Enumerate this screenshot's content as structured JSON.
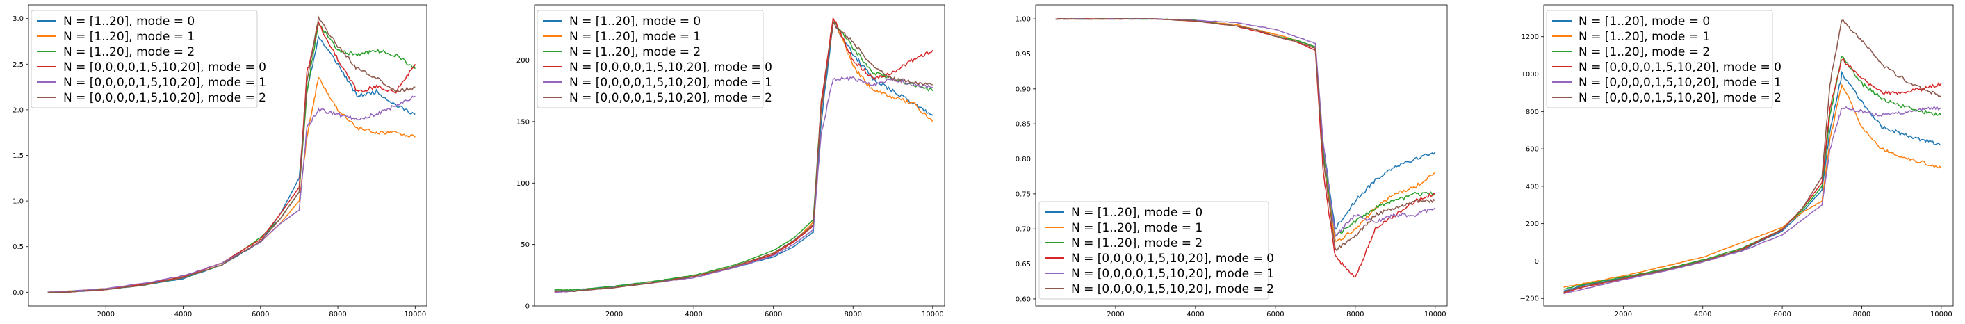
{
  "chart_data": [
    {
      "type": "line",
      "xlim": [
        0,
        10300
      ],
      "ylim": [
        -0.15,
        3.15
      ],
      "xticks": [
        2000,
        4000,
        6000,
        8000,
        10000
      ],
      "yticks": [
        0.0,
        0.5,
        1.0,
        1.5,
        2.0,
        2.5,
        3.0
      ],
      "ytick_labels": [
        "0.0",
        "0.5",
        "1.0",
        "1.5",
        "2.0",
        "2.5",
        "3.0"
      ],
      "legend_loc": "upper-left",
      "grid": false,
      "x": [
        500,
        1000,
        2000,
        3000,
        4000,
        5000,
        6000,
        6500,
        7000,
        7200,
        7500,
        8000,
        8500,
        9000,
        9500,
        10000
      ],
      "series": [
        {
          "name": "N = [1..20], mode = 0",
          "color": "#1f77b4",
          "values": [
            0.0,
            0.0,
            0.03,
            0.08,
            0.15,
            0.3,
            0.55,
            0.85,
            1.25,
            2.2,
            2.8,
            2.5,
            2.15,
            2.2,
            2.05,
            1.95
          ]
        },
        {
          "name": "N = [1..20], mode = 1",
          "color": "#ff7f0e",
          "values": [
            0.0,
            0.01,
            0.04,
            0.09,
            0.17,
            0.32,
            0.55,
            0.75,
            1.0,
            1.7,
            2.35,
            2.0,
            1.8,
            1.75,
            1.75,
            1.7
          ]
        },
        {
          "name": "N = [1..20], mode = 2",
          "color": "#2ca02c",
          "values": [
            0.0,
            0.01,
            0.03,
            0.08,
            0.16,
            0.3,
            0.6,
            0.8,
            1.1,
            2.2,
            2.95,
            2.65,
            2.6,
            2.65,
            2.6,
            2.45
          ]
        },
        {
          "name": "N = [0,0,0,0,1,5,10,20], mode = 0",
          "color": "#d62728",
          "values": [
            0.0,
            0.0,
            0.03,
            0.09,
            0.17,
            0.32,
            0.58,
            0.85,
            1.15,
            2.4,
            2.95,
            2.55,
            2.2,
            2.25,
            2.2,
            2.5
          ]
        },
        {
          "name": "N = [0,0,0,0,1,5,10,20], mode = 1",
          "color": "#9467bd",
          "values": [
            0.0,
            0.01,
            0.04,
            0.1,
            0.18,
            0.32,
            0.55,
            0.75,
            0.9,
            1.8,
            2.0,
            1.95,
            1.9,
            1.95,
            2.05,
            2.15
          ]
        },
        {
          "name": "N = [0,0,0,0,1,5,10,20], mode = 2",
          "color": "#8c564b",
          "values": [
            0.0,
            0.0,
            0.03,
            0.08,
            0.16,
            0.3,
            0.56,
            0.8,
            1.1,
            2.3,
            3.0,
            2.7,
            2.45,
            2.35,
            2.2,
            2.25
          ]
        }
      ]
    },
    {
      "type": "line",
      "xlim": [
        0,
        10300
      ],
      "ylim": [
        0,
        245
      ],
      "xticks": [
        2000,
        4000,
        6000,
        8000,
        10000
      ],
      "yticks": [
        0,
        50,
        100,
        150,
        200
      ],
      "ytick_labels": [
        "0",
        "50",
        "100",
        "150",
        "200"
      ],
      "legend_loc": "upper-left",
      "grid": false,
      "x": [
        500,
        1000,
        2000,
        3000,
        4000,
        5000,
        6000,
        6500,
        7000,
        7200,
        7500,
        8000,
        8500,
        9000,
        9500,
        10000
      ],
      "series": [
        {
          "name": "N = [1..20], mode = 0",
          "color": "#1f77b4",
          "values": [
            12,
            13,
            16,
            20,
            24,
            31,
            40,
            48,
            60,
            150,
            230,
            205,
            185,
            175,
            165,
            155
          ]
        },
        {
          "name": "N = [1..20], mode = 1",
          "color": "#ff7f0e",
          "values": [
            12,
            12,
            15,
            19,
            24,
            32,
            43,
            52,
            68,
            160,
            235,
            195,
            175,
            170,
            165,
            150
          ]
        },
        {
          "name": "N = [1..20], mode = 2",
          "color": "#2ca02c",
          "values": [
            13,
            13,
            16,
            20,
            25,
            33,
            45,
            55,
            70,
            165,
            232,
            210,
            190,
            185,
            180,
            175
          ]
        },
        {
          "name": "N = [0,0,0,0,1,5,10,20], mode = 0",
          "color": "#d62728",
          "values": [
            12,
            12,
            15,
            19,
            24,
            31,
            42,
            52,
            65,
            165,
            235,
            200,
            185,
            190,
            200,
            208
          ]
        },
        {
          "name": "N = [0,0,0,0,1,5,10,20], mode = 1",
          "color": "#9467bd",
          "values": [
            11,
            12,
            15,
            19,
            23,
            31,
            41,
            50,
            62,
            140,
            185,
            185,
            180,
            185,
            180,
            178
          ]
        },
        {
          "name": "N = [0,0,0,0,1,5,10,20], mode = 2",
          "color": "#8c564b",
          "values": [
            12,
            12,
            15,
            19,
            24,
            32,
            43,
            53,
            66,
            160,
            230,
            215,
            195,
            185,
            182,
            180
          ]
        }
      ]
    },
    {
      "type": "line",
      "xlim": [
        0,
        10300
      ],
      "ylim": [
        0.59,
        1.02
      ],
      "xticks": [
        2000,
        4000,
        6000,
        8000,
        10000
      ],
      "yticks": [
        0.6,
        0.65,
        0.7,
        0.75,
        0.8,
        0.85,
        0.9,
        0.95,
        1.0
      ],
      "ytick_labels": [
        "0.60",
        "0.65",
        "0.70",
        "0.75",
        "0.80",
        "0.85",
        "0.90",
        "0.95",
        "1.00"
      ],
      "legend_loc": "lower-left",
      "grid": false,
      "x": [
        500,
        1000,
        2000,
        3000,
        4000,
        5000,
        5500,
        6000,
        6500,
        7000,
        7200,
        7500,
        8000,
        8500,
        9000,
        9500,
        10000
      ],
      "series": [
        {
          "name": "N = [1..20], mode = 0",
          "color": "#1f77b4",
          "values": [
            1.0,
            1.0,
            1.0,
            1.0,
            0.998,
            0.99,
            0.985,
            0.975,
            0.97,
            0.96,
            0.82,
            0.7,
            0.74,
            0.77,
            0.79,
            0.8,
            0.81
          ]
        },
        {
          "name": "N = [1..20], mode = 1",
          "color": "#ff7f0e",
          "values": [
            1.0,
            1.0,
            1.0,
            1.0,
            0.997,
            0.992,
            0.985,
            0.978,
            0.97,
            0.96,
            0.8,
            0.68,
            0.7,
            0.73,
            0.75,
            0.76,
            0.78
          ]
        },
        {
          "name": "N = [1..20], mode = 2",
          "color": "#2ca02c",
          "values": [
            1.0,
            1.0,
            1.0,
            1.0,
            0.998,
            0.99,
            0.985,
            0.975,
            0.97,
            0.96,
            0.81,
            0.69,
            0.71,
            0.73,
            0.74,
            0.75,
            0.75
          ]
        },
        {
          "name": "N = [0,0,0,0,1,5,10,20], mode = 0",
          "color": "#d62728",
          "values": [
            1.0,
            1.0,
            1.0,
            1.0,
            0.997,
            0.99,
            0.983,
            0.975,
            0.968,
            0.955,
            0.78,
            0.66,
            0.63,
            0.7,
            0.72,
            0.74,
            0.75
          ]
        },
        {
          "name": "N = [0,0,0,0,1,5,10,20], mode = 1",
          "color": "#9467bd",
          "values": [
            1.0,
            1.0,
            1.0,
            1.0,
            0.998,
            0.995,
            0.99,
            0.985,
            0.975,
            0.965,
            0.82,
            0.69,
            0.72,
            0.71,
            0.72,
            0.72,
            0.73
          ]
        },
        {
          "name": "N = [0,0,0,0,1,5,10,20], mode = 2",
          "color": "#8c564b",
          "values": [
            1.0,
            1.0,
            1.0,
            1.0,
            0.997,
            0.99,
            0.985,
            0.975,
            0.968,
            0.958,
            0.8,
            0.67,
            0.69,
            0.72,
            0.73,
            0.74,
            0.74
          ]
        }
      ]
    },
    {
      "type": "line",
      "xlim": [
        0,
        10300
      ],
      "ylim": [
        -240,
        1370
      ],
      "xticks": [
        2000,
        4000,
        6000,
        8000,
        10000
      ],
      "yticks": [
        -200,
        0,
        200,
        400,
        600,
        800,
        1000,
        1200
      ],
      "ytick_labels": [
        "−200",
        "0",
        "200",
        "400",
        "600",
        "800",
        "1000",
        "1200"
      ],
      "legend_loc": "upper-left",
      "grid": false,
      "x": [
        500,
        1000,
        2000,
        3000,
        4000,
        5000,
        6000,
        6500,
        7000,
        7200,
        7500,
        8000,
        8500,
        9000,
        9500,
        10000
      ],
      "series": [
        {
          "name": "N = [1..20], mode = 0",
          "color": "#1f77b4",
          "values": [
            -160,
            -130,
            -90,
            -50,
            0,
            60,
            160,
            260,
            380,
            700,
            1000,
            850,
            720,
            680,
            650,
            620
          ]
        },
        {
          "name": "N = [1..20], mode = 1",
          "color": "#ff7f0e",
          "values": [
            -140,
            -120,
            -80,
            -30,
            20,
            100,
            180,
            260,
            320,
            650,
            950,
            720,
            600,
            560,
            530,
            500
          ]
        },
        {
          "name": "N = [1..20], mode = 2",
          "color": "#2ca02c",
          "values": [
            -150,
            -125,
            -85,
            -45,
            5,
            70,
            170,
            270,
            400,
            780,
            1100,
            950,
            870,
            830,
            800,
            780
          ]
        },
        {
          "name": "N = [0,0,0,0,1,5,10,20], mode = 0",
          "color": "#d62728",
          "values": [
            -170,
            -140,
            -95,
            -55,
            -5,
            65,
            170,
            280,
            420,
            820,
            1080,
            980,
            900,
            900,
            920,
            950
          ]
        },
        {
          "name": "N = [0,0,0,0,1,5,10,20], mode = 1",
          "color": "#9467bd",
          "values": [
            -175,
            -150,
            -100,
            -55,
            -5,
            55,
            140,
            220,
            300,
            600,
            820,
            800,
            780,
            790,
            810,
            820
          ]
        },
        {
          "name": "N = [0,0,0,0,1,5,10,20], mode = 2",
          "color": "#8c564b",
          "values": [
            -165,
            -135,
            -92,
            -50,
            0,
            62,
            165,
            280,
            450,
            950,
            1290,
            1180,
            1050,
            980,
            920,
            880
          ]
        }
      ]
    }
  ]
}
